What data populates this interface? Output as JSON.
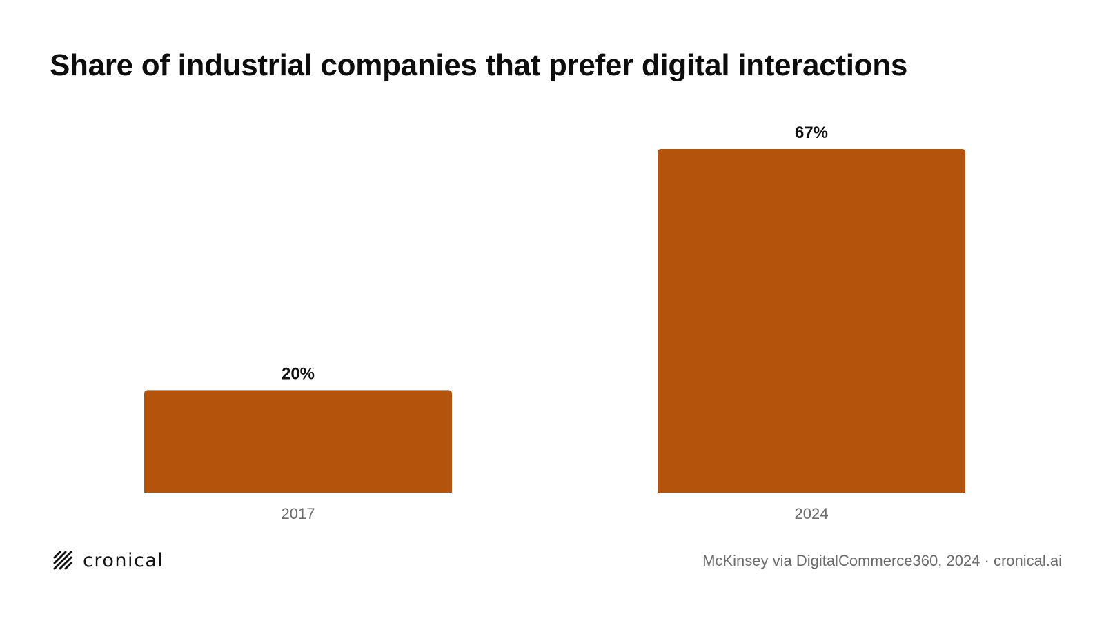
{
  "header": {
    "title": "Share of industrial companies that prefer digital interactions"
  },
  "chart_data": {
    "type": "bar",
    "title": "Share of industrial companies that prefer digital interactions",
    "categories": [
      "2017",
      "2024"
    ],
    "values": [
      20,
      67
    ],
    "value_labels": [
      "20%",
      "67%"
    ],
    "unit": "%",
    "ylim": [
      0,
      67
    ],
    "grid": false,
    "legend": "none",
    "bar_color": "#B4530B"
  },
  "footer": {
    "brand": "cronical",
    "logo_icon": "cronical-logo-icon",
    "source": "McKinsey via DigitalCommerce360, 2024 · cronical.ai"
  },
  "colors": {
    "bar": "#B4530B",
    "text": "#111111",
    "muted": "#6b6b6b",
    "background": "#ffffff"
  }
}
